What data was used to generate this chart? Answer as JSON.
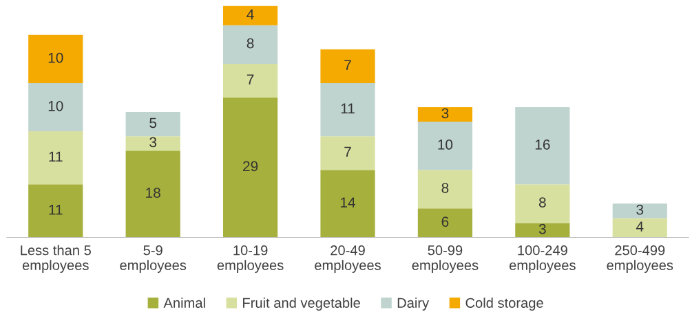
{
  "chart_data": {
    "type": "bar",
    "stacked": true,
    "categories": [
      "Less than 5\nemployees",
      "5-9\nemployees",
      "10-19\nemployees",
      "20-49\nemployees",
      "50-99\nemployees",
      "100-249\nemployees",
      "250-499\nemployees"
    ],
    "series": [
      {
        "name": "Animal",
        "color": "#a6b03c",
        "values": [
          11,
          18,
          29,
          14,
          6,
          3,
          null
        ]
      },
      {
        "name": "Fruit and vegetable",
        "color": "#d8e09f",
        "values": [
          11,
          3,
          7,
          7,
          8,
          8,
          4
        ]
      },
      {
        "name": "Dairy",
        "color": "#bfd4cf",
        "values": [
          10,
          5,
          8,
          11,
          10,
          16,
          3
        ]
      },
      {
        "name": "Cold storage",
        "color": "#f4aa00",
        "values": [
          10,
          null,
          4,
          7,
          3,
          null,
          null
        ]
      }
    ],
    "data_labels": true,
    "legend": "bottom",
    "grid": false
  }
}
